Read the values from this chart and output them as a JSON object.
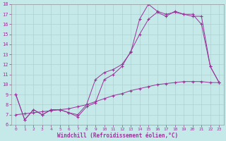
{
  "xlabel": "Windchill (Refroidissement éolien,°C)",
  "bg_color": "#c5e8e8",
  "grid_color": "#b0d0d0",
  "line_color": "#993399",
  "xlim": [
    -0.5,
    23.5
  ],
  "ylim": [
    6,
    18
  ],
  "yticks": [
    6,
    7,
    8,
    9,
    10,
    11,
    12,
    13,
    14,
    15,
    16,
    17,
    18
  ],
  "xticks": [
    0,
    1,
    2,
    3,
    4,
    5,
    6,
    7,
    8,
    9,
    10,
    11,
    12,
    13,
    14,
    15,
    16,
    17,
    18,
    19,
    20,
    21,
    22,
    23
  ],
  "line1_x": [
    0,
    1,
    2,
    3,
    4,
    5,
    6,
    7,
    8,
    9,
    10,
    11,
    12,
    13,
    14,
    15,
    16,
    17,
    18,
    19,
    20,
    21,
    22,
    23
  ],
  "line1_y": [
    9.0,
    6.5,
    7.5,
    7.0,
    7.5,
    7.5,
    7.2,
    7.0,
    8.0,
    10.5,
    11.2,
    11.5,
    12.0,
    13.2,
    16.5,
    18.0,
    17.3,
    17.0,
    17.2,
    17.0,
    16.8,
    16.8,
    11.8,
    10.2
  ],
  "line2_x": [
    0,
    1,
    2,
    3,
    4,
    5,
    6,
    7,
    8,
    9,
    10,
    11,
    12,
    13,
    14,
    15,
    16,
    17,
    18,
    19,
    20,
    21,
    22,
    23
  ],
  "line2_y": [
    9.0,
    6.5,
    7.5,
    7.0,
    7.5,
    7.5,
    7.2,
    6.8,
    7.8,
    8.2,
    10.5,
    11.0,
    11.8,
    13.3,
    15.0,
    16.5,
    17.2,
    16.8,
    17.3,
    17.0,
    17.0,
    16.0,
    11.8,
    10.2
  ],
  "line3_x": [
    0,
    1,
    2,
    3,
    4,
    5,
    6,
    7,
    8,
    9,
    10,
    11,
    12,
    13,
    14,
    15,
    16,
    17,
    18,
    19,
    20,
    21,
    22,
    23
  ],
  "line3_y": [
    7.0,
    7.1,
    7.2,
    7.3,
    7.4,
    7.5,
    7.6,
    7.8,
    8.0,
    8.3,
    8.6,
    8.9,
    9.1,
    9.4,
    9.6,
    9.8,
    10.0,
    10.1,
    10.2,
    10.3,
    10.3,
    10.3,
    10.2,
    10.2
  ]
}
